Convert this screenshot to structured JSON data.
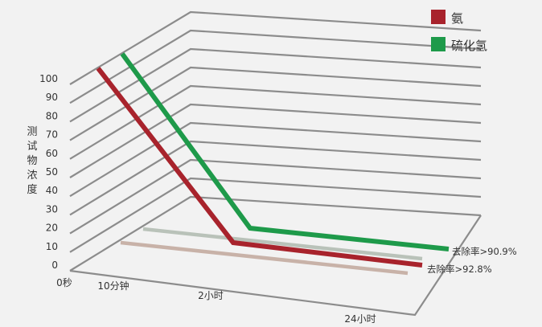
{
  "chart_data": {
    "type": "line",
    "title": "",
    "xlabel": "",
    "ylabel": "测试物浓度",
    "ylim": [
      0,
      100
    ],
    "y_ticks": [
      "0",
      "10",
      "20",
      "30",
      "40",
      "50",
      "60",
      "70",
      "80",
      "90",
      "100"
    ],
    "categories": [
      "0秒",
      "10分钟",
      "2小时",
      "24小时"
    ],
    "series": [
      {
        "name": "氨",
        "color": "#a8232c",
        "values": [
          100,
          2,
          2,
          2
        ]
      },
      {
        "name": "硫化氢",
        "color": "#1e9a4a",
        "values": [
          100,
          3,
          3,
          3
        ]
      }
    ],
    "annotations": [
      "去除率>90.9%",
      "去除率>92.8%"
    ],
    "grid": true,
    "legend_position": "top-right"
  }
}
